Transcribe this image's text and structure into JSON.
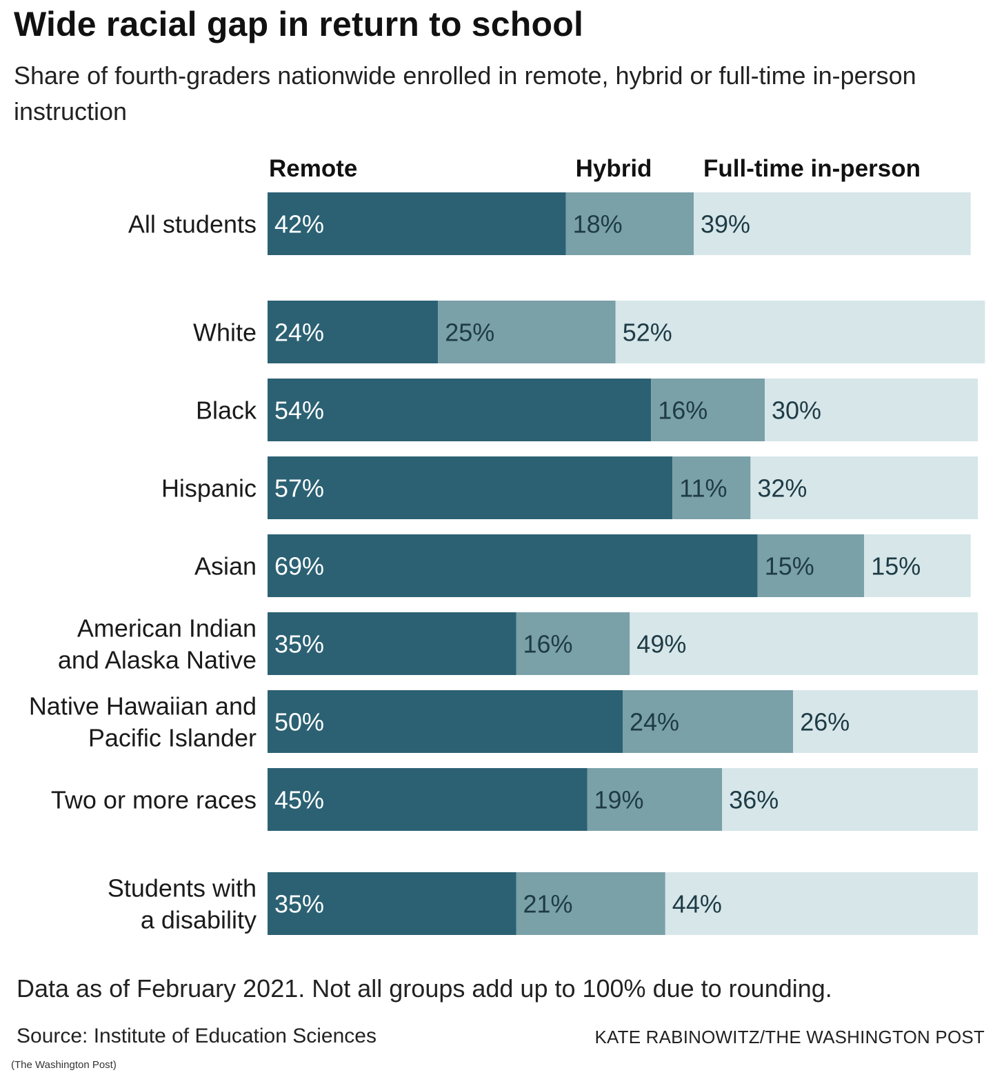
{
  "header": {
    "title": "Wide racial gap in return to school",
    "subtitle": "Share of fourth-graders nationwide enrolled in remote, hybrid or full-time in-person instruction"
  },
  "chart_data": {
    "type": "bar",
    "orientation": "horizontal",
    "stacked": true,
    "unit": "%",
    "categories": [
      "All students",
      "White",
      "Black",
      "Hispanic",
      "Asian",
      "American Indian and Alaska Native",
      "Native Hawaiian and Pacific Islander",
      "Two or more races",
      "Students with a disability"
    ],
    "category_lines": [
      [
        "All students"
      ],
      [
        "White"
      ],
      [
        "Black"
      ],
      [
        "Hispanic"
      ],
      [
        "Asian"
      ],
      [
        "American Indian",
        "and Alaska Native"
      ],
      [
        "Native Hawaiian and",
        "Pacific Islander"
      ],
      [
        "Two or more races"
      ],
      [
        "Students with",
        "a disability"
      ]
    ],
    "series": [
      {
        "name": "Remote",
        "color": "#2b6173",
        "values": [
          42,
          24,
          54,
          57,
          69,
          35,
          50,
          45,
          35
        ]
      },
      {
        "name": "Hybrid",
        "color": "#7aa0a8",
        "values": [
          18,
          25,
          16,
          11,
          15,
          16,
          24,
          19,
          21
        ]
      },
      {
        "name": "Full-time in-person",
        "color": "#d6e6e9",
        "values": [
          39,
          52,
          30,
          32,
          15,
          49,
          26,
          36,
          44
        ]
      }
    ],
    "xlim": [
      0,
      100
    ],
    "legend_position": "top",
    "grid": false,
    "data_labels": [
      "42%",
      "18%",
      "39%",
      "24%",
      "25%",
      "52%",
      "54%",
      "16%",
      "30%",
      "57%",
      "11%",
      "32%",
      "69%",
      "15%",
      "15%",
      "35%",
      "16%",
      "49%",
      "50%",
      "24%",
      "26%",
      "45%",
      "19%",
      "36%",
      "35%",
      "21%",
      "44%"
    ]
  },
  "footer": {
    "note": "Data as of February 2021. Not all groups add up to 100% due to rounding.",
    "source": "Source: Institute of Education Sciences",
    "credit": "KATE RABINOWITZ/THE WASHINGTON POST",
    "caption": "(The Washington Post)"
  }
}
